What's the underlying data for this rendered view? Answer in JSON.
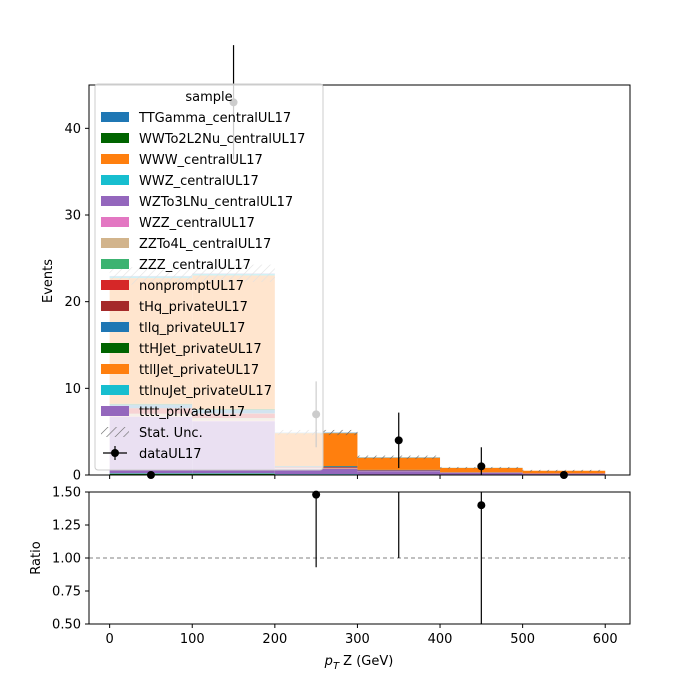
{
  "chart_data": {
    "type": "bar",
    "top": {
      "ylabel": "Events",
      "ylim": [
        0,
        45
      ],
      "yticks": [
        0,
        10,
        20,
        30,
        40
      ],
      "bin_edges": [
        0,
        100,
        200,
        300,
        400,
        500,
        600
      ],
      "series": [
        {
          "name": "TTGamma_centralUL17",
          "color": "#1f77b4",
          "values": [
            0.05,
            0.05,
            0.02,
            0.01,
            0.0,
            0.0
          ]
        },
        {
          "name": "WWTo2L2Nu_centralUL17",
          "color": "#006400",
          "values": [
            0.1,
            0.1,
            0.03,
            0.01,
            0.0,
            0.0
          ]
        },
        {
          "name": "WWW_centralUL17",
          "color": "#ff7f0e",
          "values": [
            0.0,
            0.0,
            0.0,
            0.0,
            0.0,
            0.0
          ]
        },
        {
          "name": "WWZ_centralUL17",
          "color": "#17becf",
          "values": [
            0.05,
            0.05,
            0.05,
            0.02,
            0.01,
            0.01
          ]
        },
        {
          "name": "WZTo3LNu_centralUL17",
          "color": "#9467bd",
          "values": [
            6.5,
            6.0,
            0.6,
            0.4,
            0.25,
            0.15
          ]
        },
        {
          "name": "WZZ_centralUL17",
          "color": "#e377c2",
          "values": [
            0.05,
            0.05,
            0.02,
            0.01,
            0.0,
            0.0
          ]
        },
        {
          "name": "ZZTo4L_centralUL17",
          "color": "#d2b48c",
          "values": [
            0.3,
            0.3,
            0.05,
            0.02,
            0.01,
            0.0
          ]
        },
        {
          "name": "ZZZ_centralUL17",
          "color": "#3cb371",
          "values": [
            0.02,
            0.02,
            0.01,
            0.0,
            0.0,
            0.0
          ]
        },
        {
          "name": "nonpromptUL17",
          "color": "#d62728",
          "values": [
            0.6,
            0.5,
            0.1,
            0.05,
            0.02,
            0.02
          ]
        },
        {
          "name": "tHq_privateUL17",
          "color": "#a52a2a",
          "values": [
            0.05,
            0.05,
            0.02,
            0.01,
            0.0,
            0.0
          ]
        },
        {
          "name": "tllq_privateUL17",
          "color": "#1f77b4",
          "values": [
            0.4,
            0.4,
            0.1,
            0.05,
            0.02,
            0.01
          ]
        },
        {
          "name": "ttHJet_privateUL17",
          "color": "#006400",
          "values": [
            0.1,
            0.1,
            0.03,
            0.02,
            0.01,
            0.0
          ]
        },
        {
          "name": "ttllJet_privateUL17",
          "color": "#ff7f0e",
          "values": [
            14.5,
            15.4,
            3.8,
            1.4,
            0.5,
            0.3
          ]
        },
        {
          "name": "ttlnuJet_privateUL17",
          "color": "#17becf",
          "values": [
            0.2,
            0.2,
            0.05,
            0.03,
            0.01,
            0.0
          ]
        },
        {
          "name": "tttt_privateUL17",
          "color": "#9467bd",
          "values": [
            0.05,
            0.05,
            0.02,
            0.01,
            0.0,
            0.0
          ]
        }
      ],
      "stat_unc_label": "Stat. Unc.",
      "stat_unc": [
        1.0,
        1.0,
        0.3,
        0.2,
        0.1,
        0.1
      ],
      "data": {
        "name": "dataUL17",
        "x": [
          50,
          150,
          250,
          350,
          450,
          550
        ],
        "y": [
          0,
          43,
          7,
          4,
          1,
          0
        ],
        "yerr": [
          0,
          6.6,
          3.8,
          3.2,
          2.2,
          0
        ]
      },
      "legend": {
        "title": "sample",
        "placement": "upper-left"
      }
    },
    "ratio": {
      "ylabel": "Ratio",
      "ylim": [
        0.5,
        1.5
      ],
      "yticks": [
        "0.50",
        "0.75",
        "1.00",
        "1.25",
        "1.50"
      ],
      "reference_line": 1.0,
      "points": [
        {
          "x": 250,
          "y": 1.48,
          "err_low": 0.55,
          "err_high": 0.8
        },
        {
          "x": 350,
          "y": 1.72,
          "err_low": 0.72,
          "err_high": 1.0
        },
        {
          "x": 450,
          "y": 1.4,
          "err_low": 1.4,
          "err_high": 1.5
        }
      ]
    },
    "xlabel_prefix": "p",
    "xlabel_sub": "T",
    "xlabel_rest": " Z (GeV)",
    "xlim": [
      -25,
      630
    ],
    "xticks": [
      0,
      100,
      200,
      300,
      400,
      500,
      600
    ]
  }
}
